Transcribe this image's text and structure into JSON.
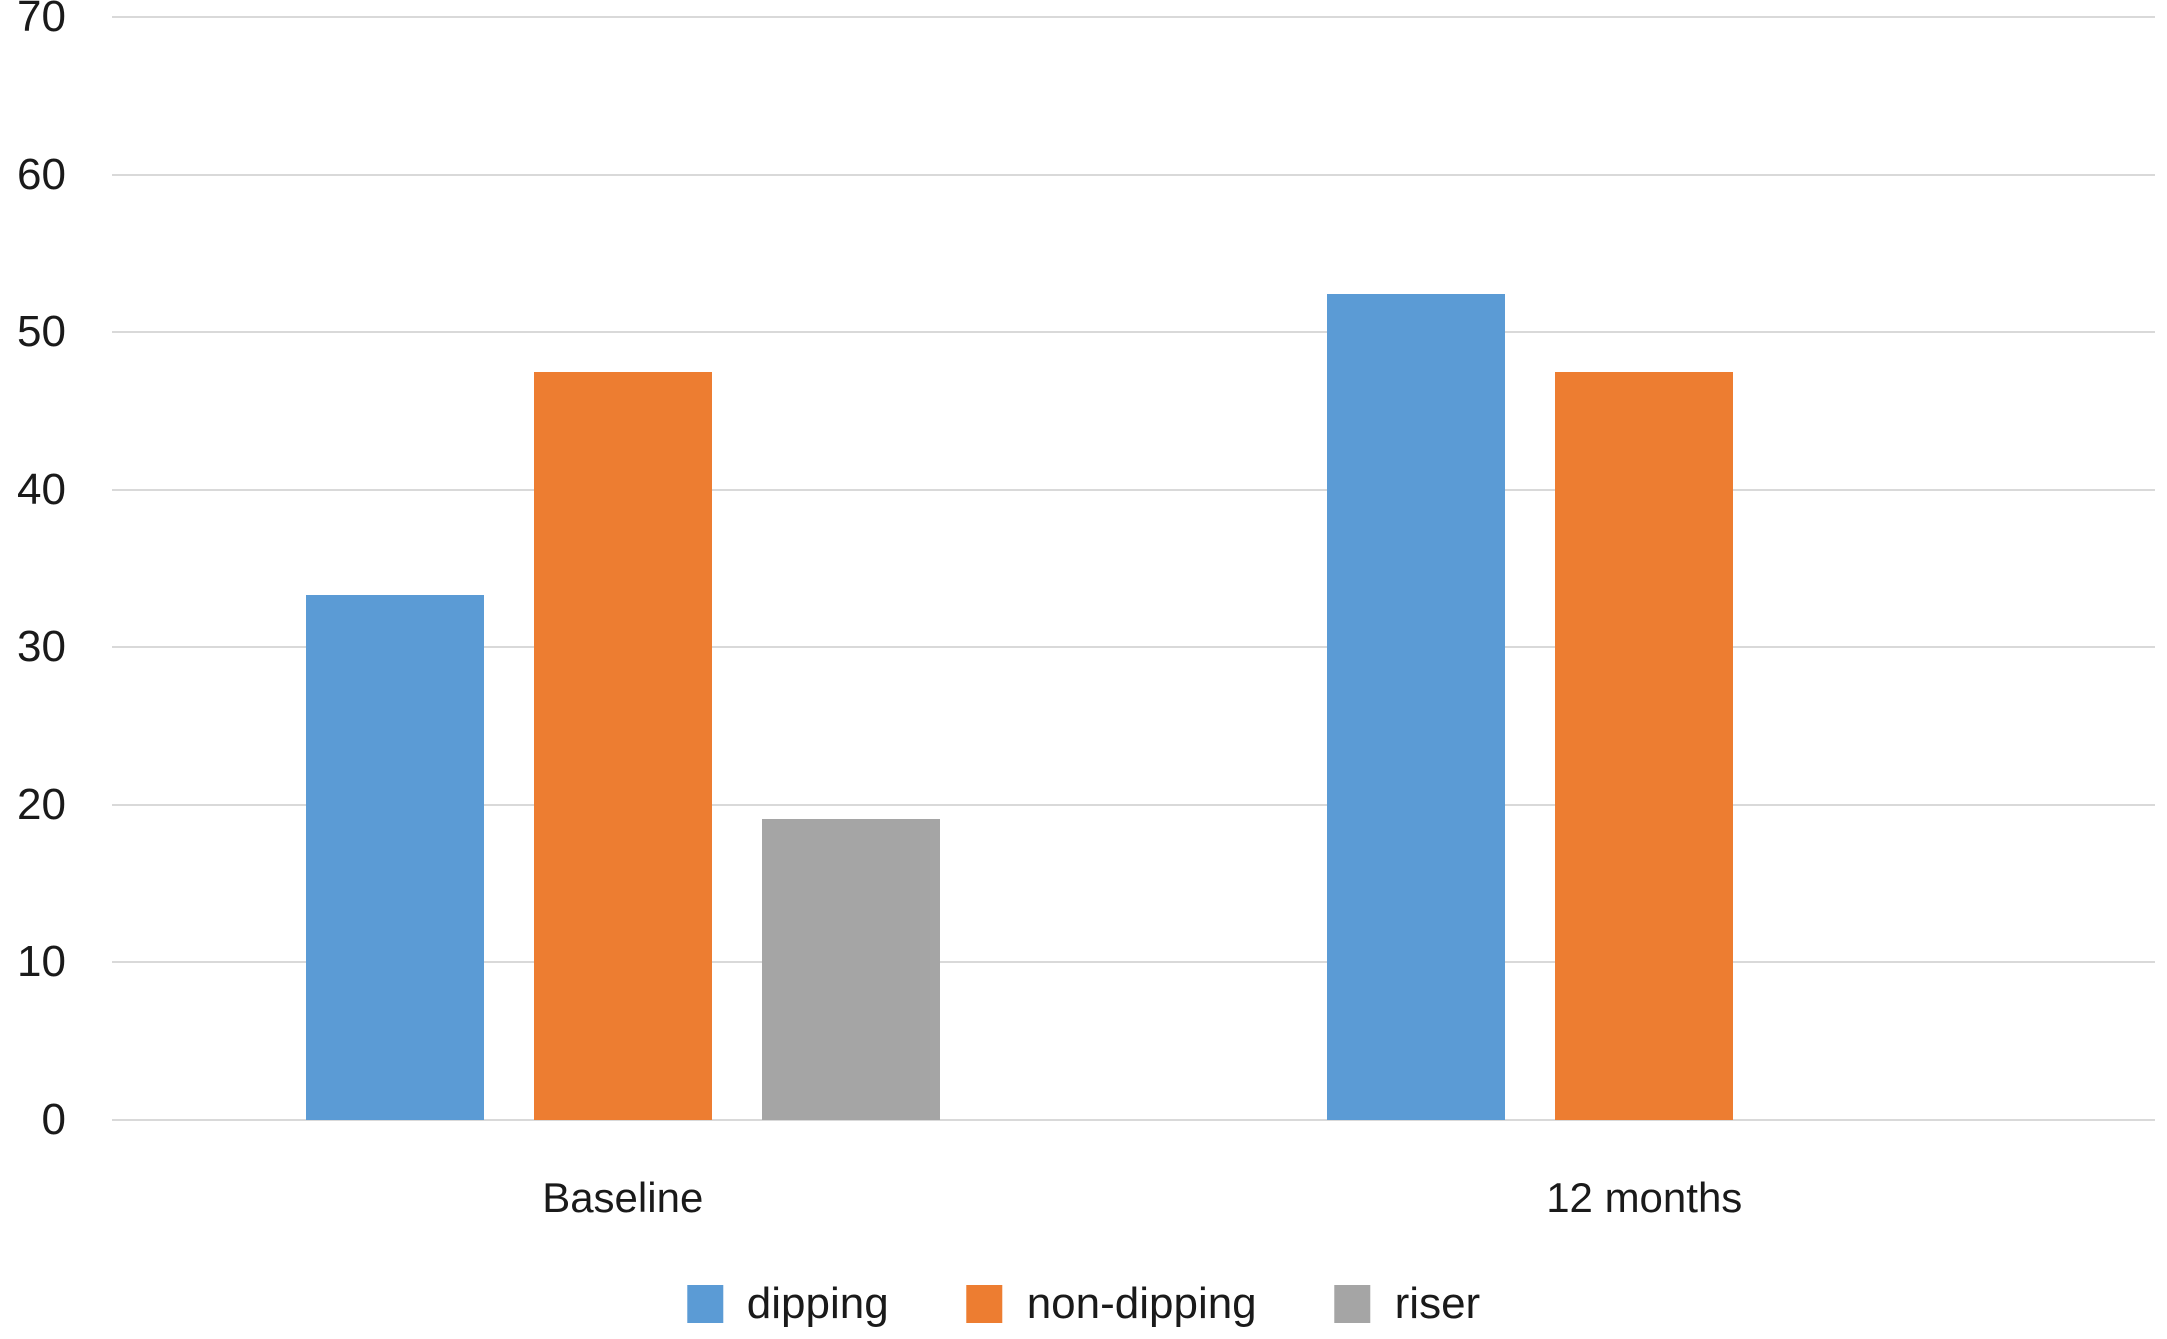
{
  "chart_data": {
    "type": "bar",
    "title": "",
    "categories": [
      "Baseline",
      "12 months"
    ],
    "series": [
      {
        "name": "dipping",
        "color": "#5B9BD5",
        "values": [
          33.3,
          52.4
        ]
      },
      {
        "name": "non-dipping",
        "color": "#ED7D31",
        "values": [
          47.5,
          47.5
        ]
      },
      {
        "name": "riser",
        "color": "#A5A5A5",
        "values": [
          19.1,
          0
        ]
      }
    ],
    "y_axis": {
      "min": 0,
      "max": 70,
      "tick_step": 10,
      "ticks": [
        0,
        10,
        20,
        30,
        40,
        50,
        60,
        70
      ]
    },
    "grid": true,
    "legend_position": "bottom",
    "colors": {
      "gridline": "#D9D9D9",
      "background": "#FFFFFF",
      "text": "#1A1A1A"
    }
  }
}
